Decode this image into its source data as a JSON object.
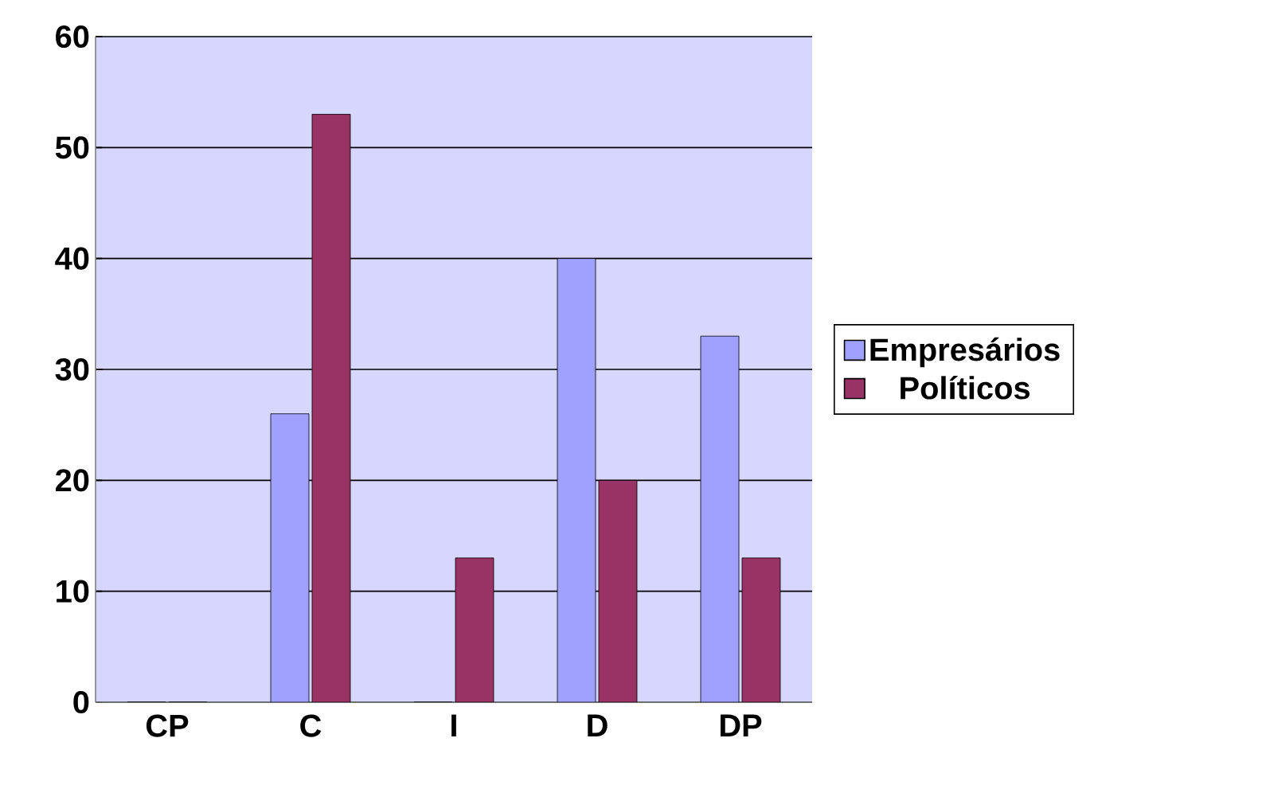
{
  "chart_data": {
    "type": "bar",
    "categories": [
      "CP",
      "C",
      "I",
      "D",
      "DP"
    ],
    "series": [
      {
        "name": "Empresários",
        "color": "#a0a0ff",
        "values": [
          0,
          26,
          0,
          40,
          33
        ]
      },
      {
        "name": "Políticos",
        "color": "#993366",
        "values": [
          0,
          53,
          13,
          20,
          13
        ]
      }
    ],
    "ylim": [
      0,
      60
    ],
    "yticks": [
      0,
      10,
      20,
      30,
      40,
      50,
      60
    ],
    "grid": "y",
    "legend": "right"
  }
}
